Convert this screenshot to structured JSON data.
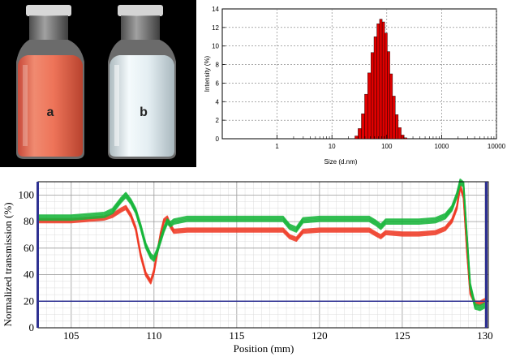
{
  "photo": {
    "labels": [
      "a",
      "b"
    ],
    "colors": {
      "background": "#000000",
      "vial_a": "#ee7459",
      "vial_b": "#e4eef2"
    }
  },
  "chart_data": [
    {
      "type": "bar",
      "xlabel": "Size (d.nm)",
      "ylabel": "Intensity (%)",
      "xscale": "log",
      "xlim": [
        0.1,
        10000
      ],
      "ylim": [
        0,
        14
      ],
      "xticks": [
        "1",
        "10",
        "100",
        "1000",
        "10000"
      ],
      "yticks": [
        "0",
        "2",
        "4",
        "6",
        "8",
        "10",
        "12",
        "14"
      ],
      "grid": true,
      "bar_color": "#e00000",
      "x": [
        28,
        32,
        37,
        42,
        48,
        55,
        62,
        70,
        78,
        87,
        97,
        108,
        120,
        135,
        152,
        172,
        195,
        220
      ],
      "values": [
        0.3,
        1.1,
        2.7,
        4.8,
        7.1,
        9.3,
        11.0,
        12.4,
        12.9,
        12.6,
        11.4,
        9.4,
        7.0,
        4.6,
        2.6,
        1.2,
        0.4,
        0.1
      ]
    },
    {
      "type": "line",
      "xlabel": "Position (mm)",
      "ylabel": "Normalized transmission (%)",
      "xlim": [
        103,
        130.2
      ],
      "ylim": [
        0,
        110
      ],
      "xticks": [
        "105",
        "110",
        "115",
        "120",
        "125",
        "130"
      ],
      "yticks": [
        "0",
        "20",
        "40",
        "60",
        "80",
        "100"
      ],
      "grid": true,
      "reference_line_y": 20,
      "series": [
        {
          "color": "#ef3a24",
          "x": [
            103,
            104,
            105,
            106,
            107,
            107.5,
            108,
            108.3,
            108.6,
            108.9,
            109.2,
            109.5,
            109.8,
            110,
            110.2,
            110.4,
            110.6,
            110.8,
            111,
            111.2,
            112,
            113,
            114,
            115,
            116,
            117,
            117.8,
            118.2,
            118.6,
            119,
            120,
            121,
            122,
            123,
            123.4,
            123.7,
            124,
            125,
            126,
            127,
            127.6,
            128,
            128.3,
            128.5,
            128.7,
            128.9,
            129.1,
            129.4,
            129.7,
            130
          ],
          "values": [
            82,
            82,
            82,
            83,
            84,
            86,
            90,
            92,
            86,
            76,
            56,
            42,
            36,
            44,
            58,
            72,
            82,
            84,
            78,
            74,
            75,
            75,
            75,
            75,
            75,
            75,
            75,
            70,
            68,
            74,
            75,
            75,
            75,
            75,
            72,
            70,
            73,
            72,
            72,
            73,
            76,
            82,
            92,
            108,
            100,
            60,
            28,
            20,
            20,
            22
          ]
        },
        {
          "color": "#16b53a",
          "x": [
            103,
            104,
            105,
            106,
            107,
            107.5,
            108,
            108.3,
            108.6,
            108.9,
            109.2,
            109.5,
            109.8,
            110,
            110.2,
            110.4,
            110.6,
            110.8,
            111,
            111.2,
            112,
            113,
            114,
            115,
            116,
            117,
            117.8,
            118.2,
            118.6,
            119,
            120,
            121,
            122,
            123,
            123.4,
            123.7,
            124,
            125,
            126,
            127,
            127.6,
            128,
            128.3,
            128.5,
            128.7,
            128.9,
            129.1,
            129.4,
            129.7,
            130
          ],
          "values": [
            83,
            83,
            83,
            84,
            85,
            88,
            96,
            100,
            95,
            88,
            76,
            62,
            54,
            52,
            58,
            66,
            74,
            80,
            78,
            80,
            82,
            82,
            82,
            82,
            82,
            82,
            82,
            76,
            74,
            81,
            82,
            82,
            82,
            82,
            79,
            76,
            80,
            80,
            80,
            81,
            84,
            90,
            100,
            110,
            108,
            70,
            32,
            16,
            15,
            17
          ]
        }
      ]
    }
  ]
}
